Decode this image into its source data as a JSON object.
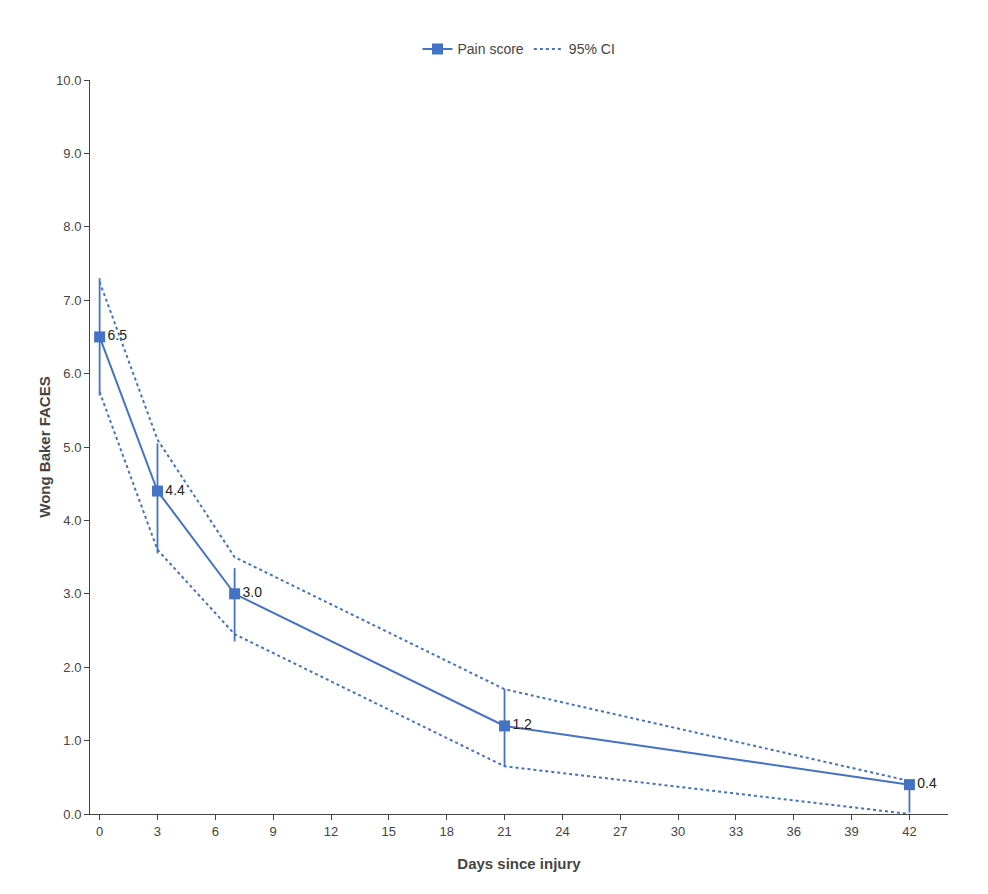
{
  "chart_data": {
    "type": "line",
    "x": [
      0,
      3,
      7,
      21,
      42
    ],
    "series": [
      {
        "name": "Pain score",
        "type": "line",
        "color": "#4472C4",
        "line_style": "solid",
        "marker": "square",
        "values": [
          6.5,
          4.4,
          3.0,
          1.2,
          0.4
        ],
        "value_labels": [
          "6.5",
          "4.4",
          "3.0",
          "1.2",
          "0.4"
        ],
        "yerr_lower": [
          0.8,
          0.85,
          0.65,
          0.55,
          0.38
        ],
        "yerr_upper": [
          0.8,
          0.65,
          0.35,
          0.5,
          0.05
        ]
      },
      {
        "name": "95% CI",
        "type": "line",
        "color": "#4472C4",
        "line_style": "dotted",
        "upper": [
          7.25,
          5.1,
          3.5,
          1.7,
          0.45
        ],
        "lower": [
          5.75,
          3.6,
          2.45,
          0.65,
          0.0
        ]
      }
    ],
    "xlabel": "Days since injury",
    "ylabel": "Wong Baker FACES",
    "xlim": [
      -0.5,
      44
    ],
    "ylim": [
      0.0,
      10.0
    ],
    "xticks": [
      0,
      3,
      6,
      9,
      12,
      15,
      18,
      21,
      24,
      27,
      30,
      33,
      36,
      39,
      42
    ],
    "yticks": [
      {
        "value": 0,
        "label": "0.0"
      },
      {
        "value": 1,
        "label": "1.0"
      },
      {
        "value": 2,
        "label": "2.0"
      },
      {
        "value": 3,
        "label": "3.0"
      },
      {
        "value": 4,
        "label": "4.0"
      },
      {
        "value": 5,
        "label": "5.0"
      },
      {
        "value": 6,
        "label": "6.0"
      },
      {
        "value": 7,
        "label": "7.0"
      },
      {
        "value": 8,
        "label": "8.0"
      },
      {
        "value": 9,
        "label": "9.0"
      },
      {
        "value": 10,
        "label": "10.0"
      }
    ],
    "grid": false,
    "legend": "upper center",
    "data_labels": true
  }
}
